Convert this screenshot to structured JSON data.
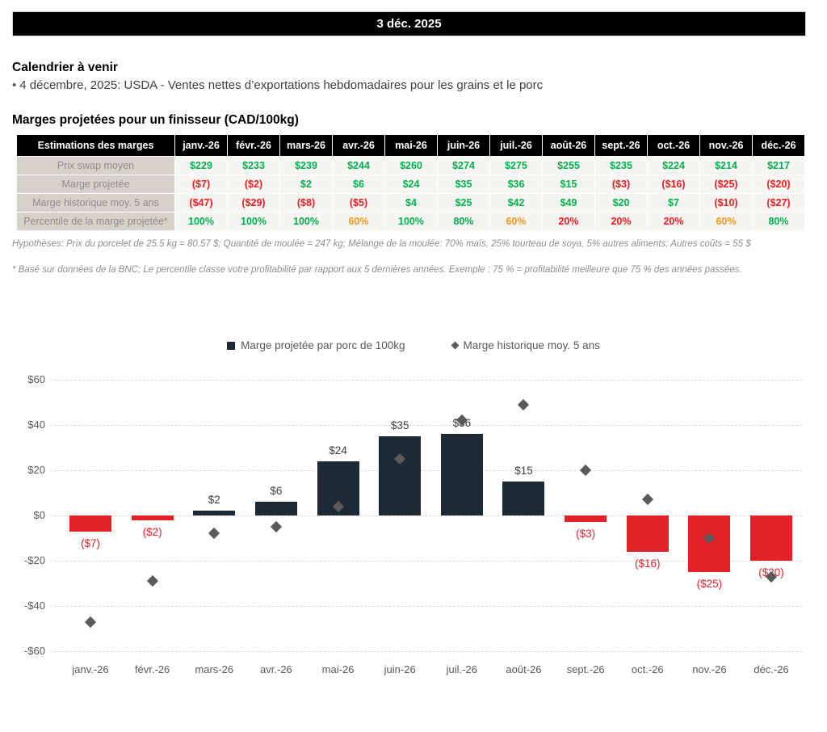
{
  "header": {
    "date": "3 déc. 2025"
  },
  "calendar": {
    "title": "Calendrier à venir",
    "bullet": "•",
    "items": [
      "4 décembre, 2025: USDA - Ventes nettes d’exportations hebdomadaires pour les grains et le porc"
    ]
  },
  "margins_table": {
    "title": "Marges projetées pour un finisseur (CAD/100kg)",
    "header_label": "Estimations des marges",
    "months": [
      "janv.-26",
      "févr.-26",
      "mars-26",
      "avr.-26",
      "mai-26",
      "juin-26",
      "juil.-26",
      "août-26",
      "sept.-26",
      "oct.-26",
      "nov.-26",
      "déc.-26"
    ],
    "rows": [
      {
        "label": "Prix swap moyen",
        "values": [
          "$229",
          "$233",
          "$239",
          "$244",
          "$260",
          "$274",
          "$275",
          "$255",
          "$235",
          "$224",
          "$214",
          "$217"
        ]
      },
      {
        "label": "Marge projetée",
        "values": [
          "($7)",
          "($2)",
          "$2",
          "$6",
          "$24",
          "$35",
          "$36",
          "$15",
          "($3)",
          "($16)",
          "($25)",
          "($20)"
        ]
      },
      {
        "label": "Marge historique moy. 5 ans",
        "values": [
          "($47)",
          "($29)",
          "($8)",
          "($5)",
          "$4",
          "$25",
          "$42",
          "$49",
          "$20",
          "$7",
          "($10)",
          "($27)"
        ]
      },
      {
        "label": "Percentile de la marge projetée*",
        "values": [
          "100%",
          "100%",
          "100%",
          "60%",
          "100%",
          "80%",
          "60%",
          "20%",
          "20%",
          "20%",
          "60%",
          "80%"
        ]
      }
    ],
    "footnotes": [
      "Hypothèses: Prix du porcelet de 25.5 kg = 80.57 $; Quantité de moulée = 247 kg; Mélange de la moulée: 70% maïs, 25% tourteau de soya, 5% autres aliments; Autres coûts = 55 $",
      "* Basé sur données de la BNC; Le percentile classe votre profitabilité par rapport aux 5 dernières années. Exemple : 75 % = profitabilité meilleure que 75 % des années passées."
    ]
  },
  "chart_data": {
    "type": "bar",
    "categories": [
      "janv.-26",
      "févr.-26",
      "mars-26",
      "avr.-26",
      "mai-26",
      "juin-26",
      "juil.-26",
      "août-26",
      "sept.-26",
      "oct.-26",
      "nov.-26",
      "déc.-26"
    ],
    "series": [
      {
        "name": "Marge projetée par porc de 100kg",
        "type": "bar",
        "values": [
          -7,
          -2,
          2,
          6,
          24,
          35,
          36,
          15,
          -3,
          -16,
          -25,
          -20
        ],
        "labels": [
          "($7)",
          "($2)",
          "$2",
          "$6",
          "$24",
          "$35",
          "$36",
          "$15",
          "($3)",
          "($16)",
          "($25)",
          "($20)"
        ]
      },
      {
        "name": "Marge historique moy. 5 ans",
        "type": "scatter",
        "marker": "diamond",
        "values": [
          -47,
          -29,
          -8,
          -5,
          4,
          25,
          42,
          49,
          20,
          7,
          -10,
          -27
        ]
      }
    ],
    "title": "",
    "xlabel": "",
    "ylabel": "",
    "ylim": [
      -60,
      60
    ],
    "ytick_step": 20,
    "ytick_labels": [
      "$60",
      "$40",
      "$20",
      "$0",
      "-$20",
      "-$40",
      "-$60"
    ],
    "grid": "dashed-horizontal",
    "legend_position": "top-center"
  },
  "colors": {
    "bar_positive": "#1d2935",
    "bar_negative": "#e32128",
    "label_positive": "#404040",
    "label_negative": "#e32128",
    "marker": "#5a5a5a",
    "table_green": "#00b050",
    "table_red": "#ed1c24",
    "table_orange": "#f7941d",
    "header_bg": "#000000"
  }
}
